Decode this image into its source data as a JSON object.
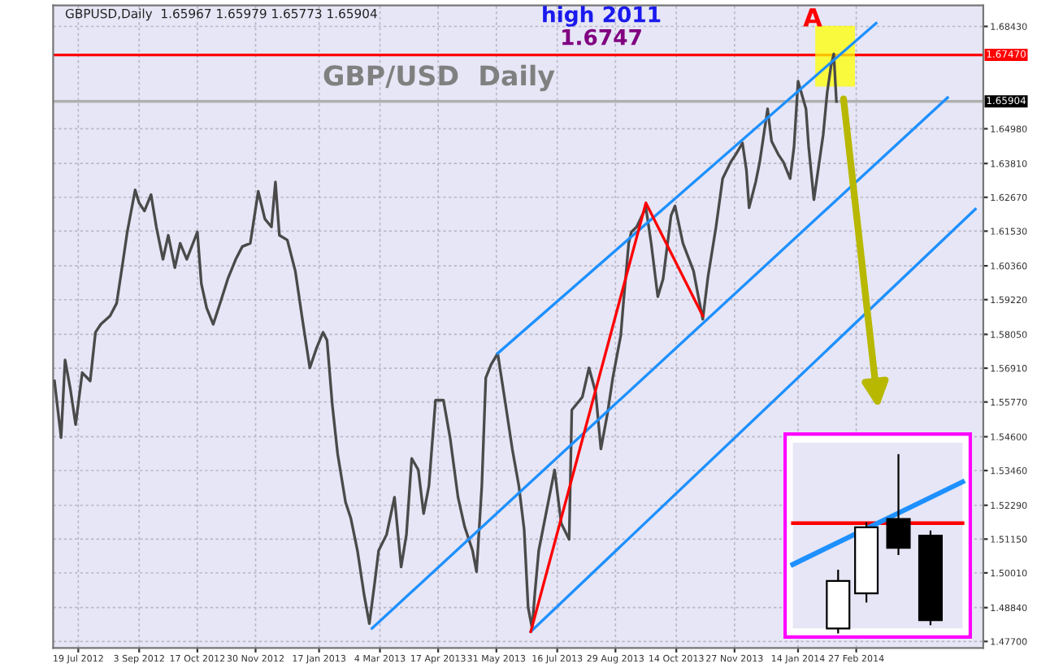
{
  "chart_data": {
    "type": "line",
    "title": "GBP/USD  Daily",
    "x": [
      "2012-07-01",
      "2012-07-06",
      "2012-07-09",
      "2012-07-13",
      "2012-07-17",
      "2012-07-22",
      "2012-07-28",
      "2012-08-01",
      "2012-08-05",
      "2012-08-12",
      "2012-08-17",
      "2012-08-22",
      "2012-08-25",
      "2012-08-31",
      "2012-09-03",
      "2012-09-07",
      "2012-09-12",
      "2012-09-16",
      "2012-09-21",
      "2012-09-25",
      "2012-09-30",
      "2012-10-04",
      "2012-10-09",
      "2012-10-17",
      "2012-10-20",
      "2012-10-24",
      "2012-10-29",
      "2012-11-04",
      "2012-11-09",
      "2012-11-15",
      "2012-11-20",
      "2012-11-26",
      "2012-12-02",
      "2012-12-07",
      "2012-12-12",
      "2012-12-15",
      "2012-12-18",
      "2012-12-24",
      "2012-12-30",
      "2013-01-04",
      "2013-01-10",
      "2013-01-15",
      "2013-01-20",
      "2013-01-23",
      "2013-01-27",
      "2013-01-31",
      "2013-02-06",
      "2013-02-10",
      "2013-02-15",
      "2013-02-20",
      "2013-02-24",
      "2013-02-28",
      "2013-03-03",
      "2013-03-09",
      "2013-03-15",
      "2013-03-20",
      "2013-03-24",
      "2013-03-28",
      "2013-04-02",
      "2013-04-06",
      "2013-04-10",
      "2013-04-15",
      "2013-04-21",
      "2013-04-26",
      "2013-05-02",
      "2013-05-07",
      "2013-05-13",
      "2013-05-16",
      "2013-05-20",
      "2013-05-23",
      "2013-05-27",
      "2013-06-01",
      "2013-06-07",
      "2013-06-12",
      "2013-06-17",
      "2013-06-21",
      "2013-06-24",
      "2013-06-27",
      "2013-06-29",
      "2013-07-02",
      "2013-07-08",
      "2013-07-14",
      "2013-07-19",
      "2013-07-25",
      "2013-07-27",
      "2013-08-04",
      "2013-08-09",
      "2013-08-14",
      "2013-08-18",
      "2013-08-23",
      "2013-08-27",
      "2013-09-02",
      "2013-09-04",
      "2013-09-08",
      "2013-09-10",
      "2013-09-14",
      "2013-09-21",
      "2013-09-25",
      "2013-09-30",
      "2013-10-04",
      "2013-10-10",
      "2013-10-13",
      "2013-10-19",
      "2013-10-27",
      "2013-10-30",
      "2013-11-03",
      "2013-11-07",
      "2013-11-13",
      "2013-11-18",
      "2013-11-24",
      "2013-11-28",
      "2013-12-03",
      "2013-12-06",
      "2013-12-08",
      "2013-12-13",
      "2013-12-16",
      "2013-12-22",
      "2013-12-25",
      "2013-12-30",
      "2014-01-03",
      "2014-01-08",
      "2014-01-11",
      "2014-01-14",
      "2014-01-20",
      "2014-01-22",
      "2014-01-26",
      "2014-01-30",
      "2014-02-02",
      "2014-02-05",
      "2014-02-08",
      "2014-02-10",
      "2014-02-12"
    ],
    "series": [
      {
        "color": "#4a4a4a",
        "values": [
          1.5648,
          1.5457,
          1.5719,
          1.5621,
          1.5501,
          1.5676,
          1.5648,
          1.5812,
          1.5839,
          1.5867,
          1.591,
          1.6058,
          1.615,
          1.6292,
          1.6248,
          1.6221,
          1.6276,
          1.6167,
          1.6058,
          1.6139,
          1.603,
          1.6112,
          1.6058,
          1.615,
          1.5976,
          1.5894,
          1.5839,
          1.5921,
          1.5992,
          1.6058,
          1.6101,
          1.6112,
          1.6287,
          1.6194,
          1.6167,
          1.6319,
          1.6139,
          1.6123,
          1.6019,
          1.5867,
          1.5692,
          1.5758,
          1.5812,
          1.5785,
          1.5567,
          1.5403,
          1.5239,
          1.5185,
          1.5076,
          1.4928,
          1.483,
          1.4967,
          1.5076,
          1.513,
          1.5256,
          1.5021,
          1.513,
          1.5387,
          1.5348,
          1.5201,
          1.5294,
          1.5583,
          1.5583,
          1.5457,
          1.5256,
          1.5157,
          1.5076,
          1.5005,
          1.5294,
          1.5659,
          1.5703,
          1.5741,
          1.5567,
          1.5419,
          1.5294,
          1.5147,
          1.4885,
          1.4814,
          1.4928,
          1.5076,
          1.5212,
          1.5348,
          1.5168,
          1.5114,
          1.555,
          1.5594,
          1.5692,
          1.561,
          1.5419,
          1.5539,
          1.5659,
          1.5801,
          1.591,
          1.6112,
          1.615,
          1.6167,
          1.6232,
          1.6112,
          1.5932,
          1.5992,
          1.6205,
          1.6238,
          1.6112,
          1.6019,
          1.5948,
          1.5856,
          1.6001,
          1.6167,
          1.633,
          1.6385,
          1.6412,
          1.645,
          1.6358,
          1.6232,
          1.6319,
          1.6385,
          1.6565,
          1.6456,
          1.6412,
          1.6385,
          1.633,
          1.6439,
          1.6658,
          1.6565,
          1.6439,
          1.6259,
          1.6385,
          1.6478,
          1.6619,
          1.6712,
          1.675,
          1.659
        ]
      },
      {
        "color": "#1e90ff",
        "x": [
          "2013-06-01",
          "2014-03-14"
        ],
        "values": [
          1.5741,
          1.6854
        ]
      },
      {
        "color": "#1e90ff",
        "x": [
          "2013-02-26",
          "2014-05-07"
        ],
        "values": [
          1.4814,
          1.6603
        ]
      },
      {
        "color": "#1e90ff",
        "x": [
          "2013-06-26",
          "2014-05-28"
        ],
        "values": [
          1.4803,
          1.6227
        ]
      },
      {
        "color": "#ff0000",
        "x": [
          "2013-06-26",
          "2013-09-21",
          "2013-11-03"
        ],
        "values": [
          1.4803,
          1.6248,
          1.5867
        ]
      }
    ],
    "xlim": [
      "2012-06-30",
      "2014-06-03"
    ],
    "xticks": [
      {
        "value": "2012-07-19",
        "label": "19 Jul 2012"
      },
      {
        "value": "2012-09-03",
        "label": "3 Sep 2012"
      },
      {
        "value": "2012-10-17",
        "label": "17 Oct 2012"
      },
      {
        "value": "2012-11-30",
        "label": "30 Nov 2012"
      },
      {
        "value": "2013-01-17",
        "label": "17 Jan 2013"
      },
      {
        "value": "2013-03-04",
        "label": "4 Mar 2013"
      },
      {
        "value": "2013-04-17",
        "label": "17 Apr 2013"
      },
      {
        "value": "2013-05-31",
        "label": "31 May 2013"
      },
      {
        "value": "2013-07-16",
        "label": "16 Jul 2013"
      },
      {
        "value": "2013-08-29",
        "label": "29 Aug 2013"
      },
      {
        "value": "2013-10-14",
        "label": "14 Oct 2013"
      },
      {
        "value": "2013-11-27",
        "label": "27 Nov 2013"
      },
      {
        "value": "2014-01-14",
        "label": "14 Jan 2014"
      },
      {
        "value": "2014-02-27",
        "label": "27 Feb 2014"
      }
    ],
    "ylim": [
      1.4748,
      1.6914
    ],
    "yticks": [
      {
        "value": 1.6843,
        "label": "1.68430"
      },
      {
        "value": 1.6498,
        "label": "1.64980"
      },
      {
        "value": 1.6381,
        "label": "1.63810"
      },
      {
        "value": 1.6267,
        "label": "1.62670"
      },
      {
        "value": 1.6153,
        "label": "1.61530"
      },
      {
        "value": 1.6036,
        "label": "1.60360"
      },
      {
        "value": 1.5922,
        "label": "1.59220"
      },
      {
        "value": 1.5805,
        "label": "1.58050"
      },
      {
        "value": 1.5691,
        "label": "1.56910"
      },
      {
        "value": 1.5577,
        "label": "1.55770"
      },
      {
        "value": 1.546,
        "label": "1.54600"
      },
      {
        "value": 1.5346,
        "label": "1.53460"
      },
      {
        "value": 1.5229,
        "label": "1.52290"
      },
      {
        "value": 1.5115,
        "label": "1.51150"
      },
      {
        "value": 1.5001,
        "label": "1.50010"
      },
      {
        "value": 1.4884,
        "label": "1.48840"
      },
      {
        "value": 1.477,
        "label": "1.47700"
      }
    ],
    "ref_lines": [
      {
        "axis": "y",
        "value": 1.6747,
        "label": "1.67470",
        "color": "#ff0000"
      },
      {
        "axis": "y",
        "value": 1.65904,
        "label": "1.65904",
        "color": "#b0b0b0"
      }
    ],
    "annotations": [
      "GBPUSD,Daily  1.65967 1.65979 1.65773 1.65904",
      "high 2011",
      "1.6747",
      "A"
    ],
    "grid": true
  }
}
